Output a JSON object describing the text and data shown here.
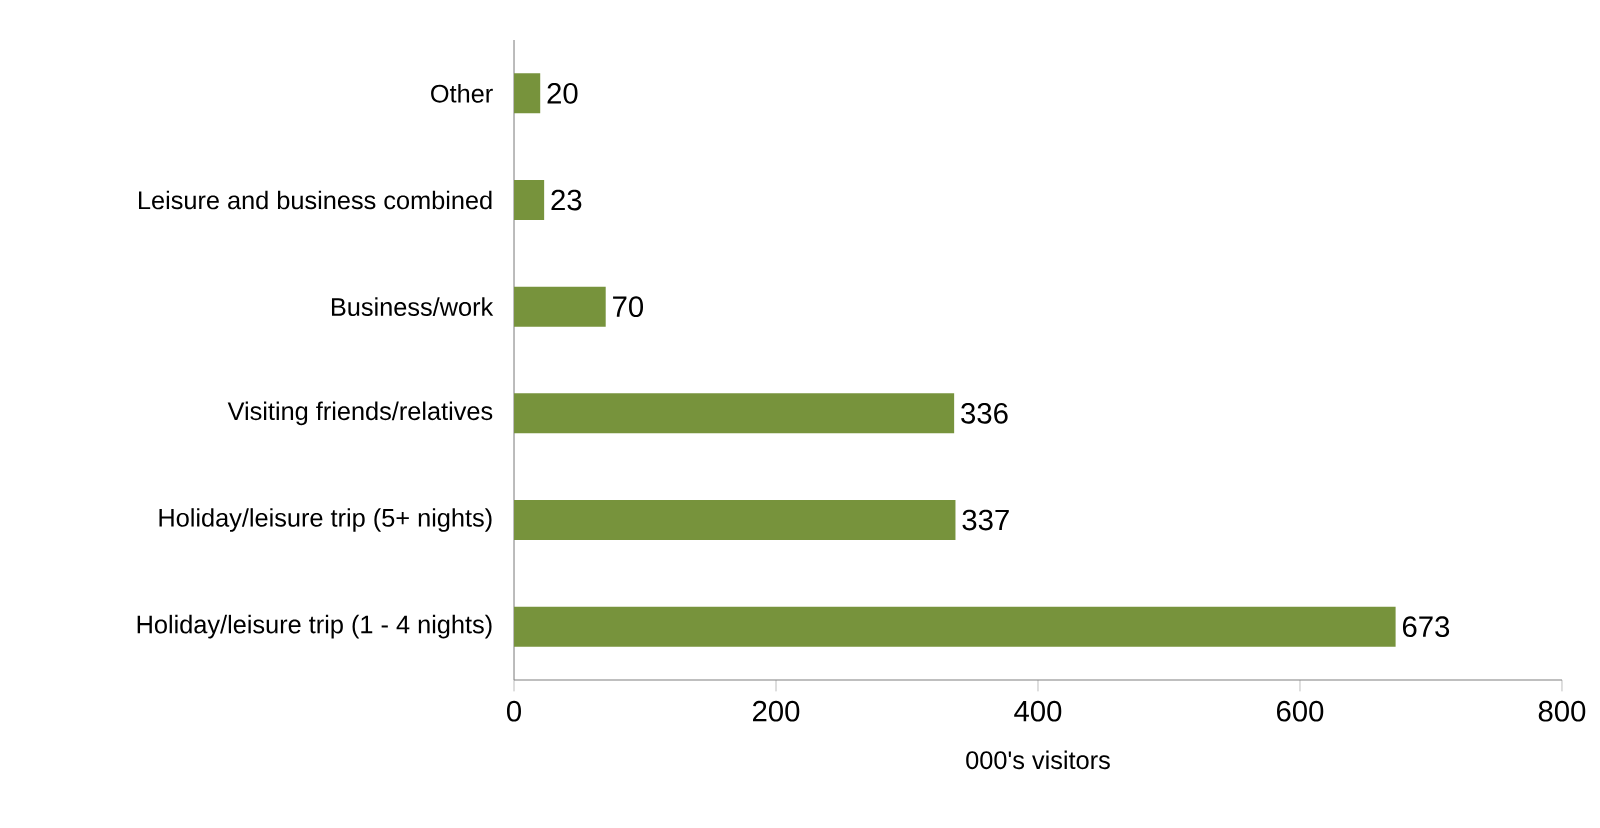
{
  "chart_data": {
    "type": "bar",
    "orientation": "horizontal",
    "xlabel": "000's visitors",
    "categories": [
      "Other",
      "Leisure and business combined",
      "Business/work",
      "Visiting friends/relatives",
      "Holiday/leisure trip  (5+ nights)",
      "Holiday/leisure trip  (1 - 4 nights)"
    ],
    "values": [
      20,
      23,
      70,
      336,
      337,
      673
    ],
    "color": "#77933c",
    "xlim": [
      0,
      800
    ],
    "xticks": [
      0,
      200,
      400,
      600,
      800
    ],
    "data_labels": true,
    "grid": false
  }
}
